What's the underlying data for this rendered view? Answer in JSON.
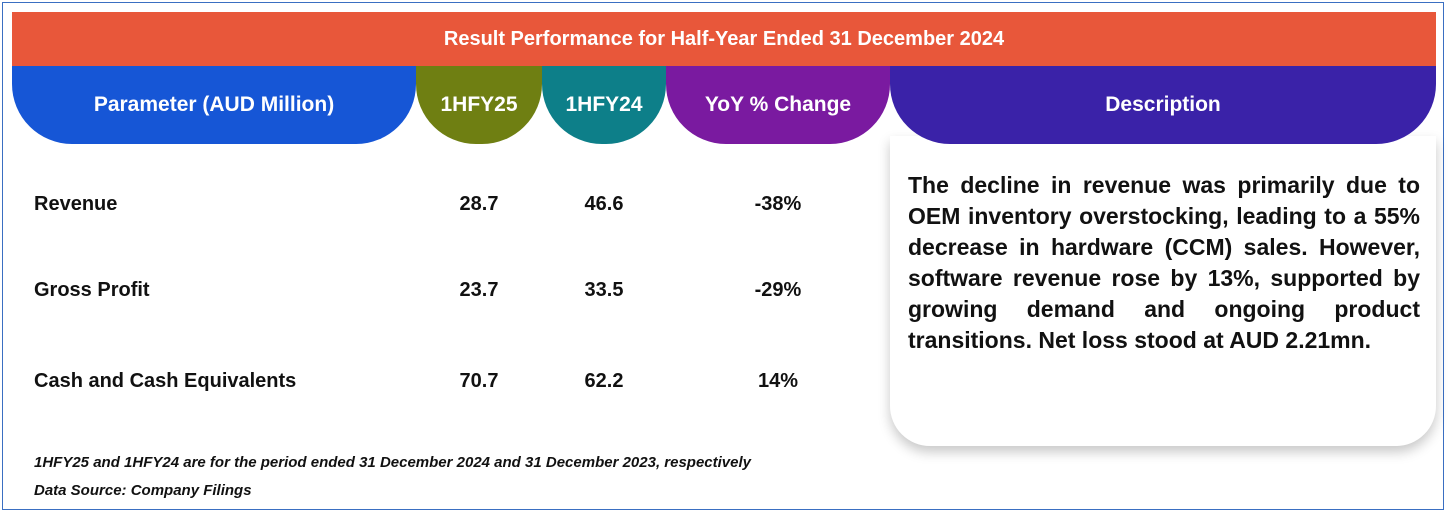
{
  "title": "Result Performance for Half-Year Ended 31 December 2024",
  "headers": {
    "parameter": "Parameter (AUD Million)",
    "hfy25": "1HFY25",
    "hfy24": "1HFY24",
    "yoy": "YoY % Change",
    "description": "Description"
  },
  "rows": [
    {
      "label": "Revenue",
      "hfy25": "28.7",
      "hfy24": "46.6",
      "yoy": "-38%"
    },
    {
      "label": "Gross Profit",
      "hfy25": "23.7",
      "hfy24": "33.5",
      "yoy": "-29%"
    },
    {
      "label": "Cash and Cash Equivalents",
      "hfy25": "70.7",
      "hfy24": "62.2",
      "yoy": "14%"
    }
  ],
  "description": "The decline in revenue was primarily due to OEM inventory overstocking, leading to a 55% decrease in hardware (CCM) sales. However, software revenue rose by 13%, supported by growing demand and ongoing product transitions. Net loss stood at AUD 2.21mn.",
  "footnotes": {
    "period": "1HFY25 and 1HFY24 are for the period ended 31 December 2024 and 31 December 2023, respectively",
    "source": "Data Source: Company Filings"
  },
  "colors": {
    "title": "#e8573a",
    "parameter": "#1656d6",
    "hfy25": "#6f7f12",
    "hfy24": "#0d7f89",
    "yoy": "#7a1aa0",
    "description": "#3a22a8"
  }
}
